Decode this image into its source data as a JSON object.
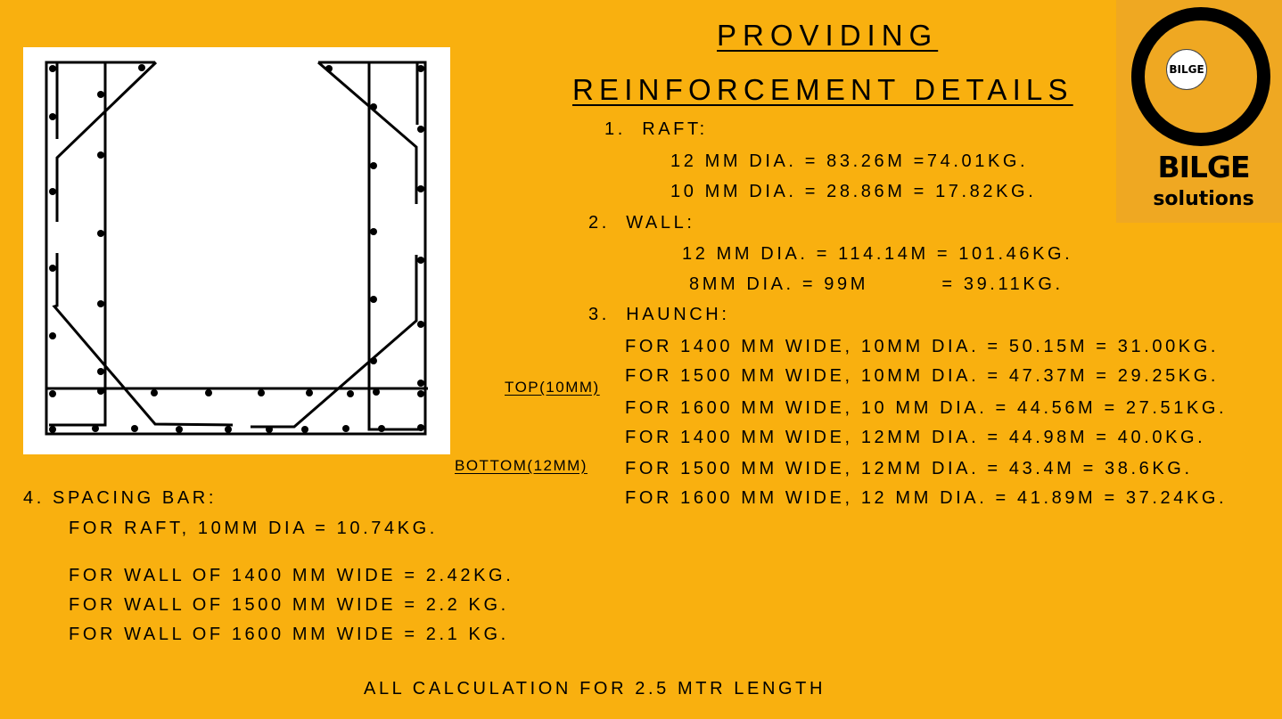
{
  "title": {
    "line1": "PROVIDING",
    "line2": "REINFORCEMENT DETAILS"
  },
  "logo": {
    "inner_text": "BILGE",
    "name": "BILGE",
    "subtitle": "solutions"
  },
  "raft": {
    "heading": "1.  RAFT:",
    "lines": [
      "12 MM DIA. = 83.26M =74.01KG.",
      "10 MM DIA. = 28.86M = 17.82KG."
    ]
  },
  "wall": {
    "heading": "2.  WALL:",
    "lines": [
      "12 MM DIA. = 114.14M = 101.46KG.",
      "8MM DIA. = 99M         = 39.11KG."
    ]
  },
  "haunch": {
    "heading": "3.  HAUNCH:",
    "top_label": "TOP(10MM)",
    "bottom_label": "BOTTOM(12MM)",
    "lines": [
      "FOR 1400 MM WIDE, 10MM DIA. = 50.15M = 31.00KG.",
      "FOR 1500 MM WIDE, 10MM DIA. = 47.37M = 29.25KG.",
      "FOR 1600 MM WIDE, 10 MM DIA. = 44.56M = 27.51KG.",
      "FOR 1400 MM WIDE, 12MM DIA. = 44.98M = 40.0KG.",
      "FOR 1500 MM WIDE, 12MM DIA. = 43.4M = 38.6KG.",
      "FOR 1600 MM WIDE, 12 MM DIA. = 41.89M = 37.24KG."
    ]
  },
  "spacing": {
    "heading": "4. SPACING BAR:",
    "raft_line": "FOR RAFT, 10MM DIA = 10.74KG.",
    "wall_lines": [
      "FOR WALL OF 1400 MM WIDE = 2.42KG.",
      "FOR WALL OF 1500 MM WIDE = 2.2 KG.",
      "FOR WALL OF 1600 MM WIDE = 2.1 KG."
    ]
  },
  "footer": "ALL CALCULATION FOR 2.5 MTR LENGTH",
  "colors": {
    "background": "#F9B00F",
    "logo_background": "#EFA822"
  }
}
